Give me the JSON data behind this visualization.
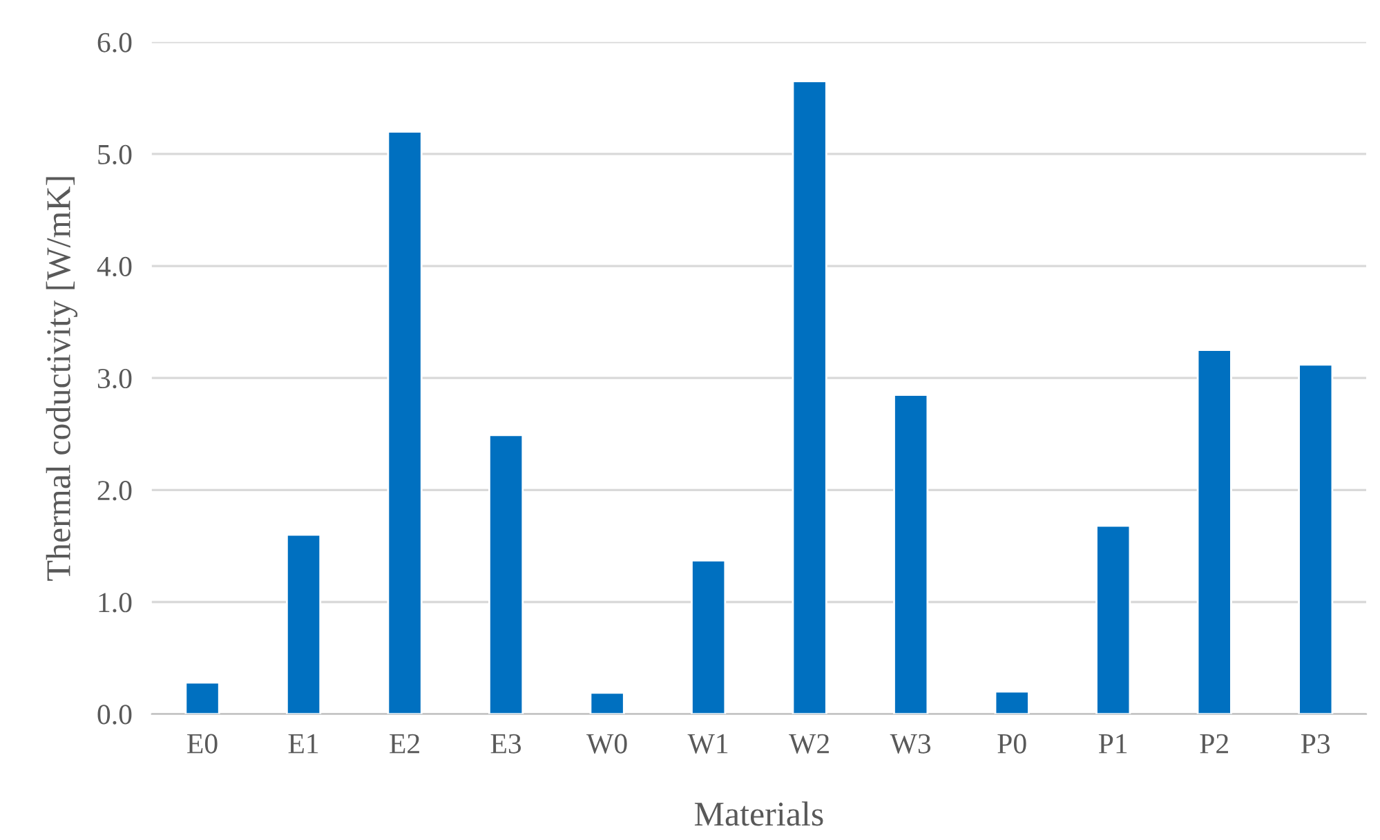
{
  "chart_data": {
    "type": "bar",
    "xlabel": "Materials",
    "ylabel": "Thermal coductivity [W/mK]",
    "categories": [
      "E0",
      "E1",
      "E2",
      "E3",
      "W0",
      "W1",
      "W2",
      "W3",
      "P0",
      "P1",
      "P2",
      "P3"
    ],
    "values": [
      0.28,
      1.6,
      5.2,
      2.49,
      0.19,
      1.37,
      5.65,
      2.85,
      0.2,
      1.68,
      3.25,
      3.12
    ],
    "color": "#0070c0",
    "ylim": [
      0,
      6
    ],
    "yticks": [
      {
        "value": 0,
        "label": "0.0"
      },
      {
        "value": 1,
        "label": "1.0"
      },
      {
        "value": 2,
        "label": "2.0"
      },
      {
        "value": 3,
        "label": "3.0"
      },
      {
        "value": 4,
        "label": "4.0"
      },
      {
        "value": 5,
        "label": "5.0"
      },
      {
        "value": 6,
        "label": "6.0"
      }
    ],
    "grid": "y"
  }
}
